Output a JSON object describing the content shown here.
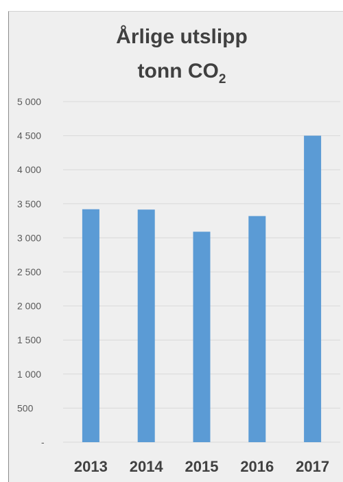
{
  "chart_data": {
    "type": "bar",
    "title_line1": "Årlige utslipp",
    "title_line2_main": "tonn CO",
    "title_line2_sub": "2",
    "categories": [
      "2013",
      "2014",
      "2015",
      "2016",
      "2017"
    ],
    "values": [
      3420,
      3415,
      3090,
      3320,
      4500
    ],
    "ylim": [
      0,
      5000
    ],
    "yticks": [
      0,
      500,
      1000,
      1500,
      2000,
      2500,
      3000,
      3500,
      4000,
      4500,
      5000
    ],
    "ytick_labels": [
      "-",
      "500",
      "1 000",
      "1 500",
      "2 000",
      "2 500",
      "3 000",
      "3 500",
      "4 000",
      "4 500",
      "5 000"
    ],
    "grid": true,
    "bar_color": "#5b9bd5",
    "grid_color": "#d9d9d9",
    "background_color": "#efefef"
  }
}
